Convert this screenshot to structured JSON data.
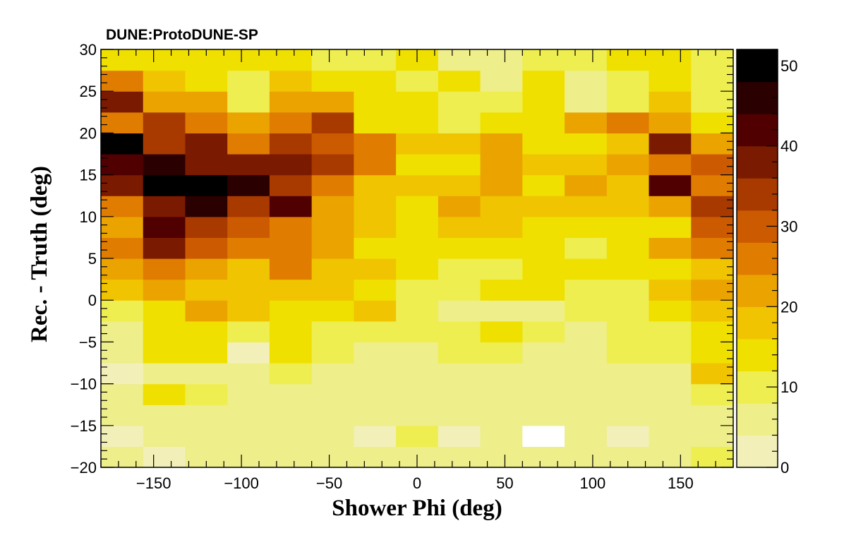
{
  "chart_data": {
    "type": "heatmap",
    "title": "DUNE:ProtoDUNE-SP",
    "xlabel": "Shower Phi (deg)",
    "ylabel": "Rec. - Truth (deg)",
    "xlim": [
      -180,
      180
    ],
    "ylim": [
      -20,
      30
    ],
    "zlim": [
      0,
      52
    ],
    "x_bin_edges": [
      -180,
      -156,
      -132,
      -108,
      -84,
      -60,
      -36,
      -12,
      12,
      36,
      60,
      84,
      108,
      132,
      156,
      180
    ],
    "y_bin_edges": [
      -20,
      -17.5,
      -15,
      -12.5,
      -10,
      -7.5,
      -5,
      -2.5,
      0,
      2.5,
      5,
      7.5,
      10,
      12.5,
      15,
      17.5,
      20,
      22.5,
      25,
      27.5,
      30
    ],
    "x_ticks": [
      "−150",
      "−100",
      "−50",
      "0",
      "50",
      "100",
      "150"
    ],
    "x_tick_values": [
      -150,
      -100,
      -50,
      0,
      50,
      100,
      150
    ],
    "y_ticks": [
      "−20",
      "−15",
      "−10",
      "−5",
      "0",
      "5",
      "10",
      "15",
      "20",
      "25",
      "30"
    ],
    "y_tick_values": [
      -20,
      -15,
      -10,
      -5,
      0,
      5,
      10,
      15,
      20,
      25,
      30
    ],
    "colorbar_ticks": [
      "0",
      "10",
      "20",
      "30",
      "40",
      "50"
    ],
    "colorbar_tick_values": [
      0,
      10,
      20,
      30,
      40,
      50
    ],
    "palette": [
      "#f2f0b8",
      "#eeee8a",
      "#eeee50",
      "#f0e000",
      "#f0c400",
      "#eba300",
      "#e07c00",
      "#cc5a00",
      "#a83a00",
      "#7a1a00",
      "#500000",
      "#2a0000",
      "#000000"
    ],
    "z": [
      [
        5,
        3,
        6,
        6,
        6,
        5,
        5,
        4,
        4,
        4,
        5,
        6,
        6,
        7,
        9
      ],
      [
        3,
        5,
        6,
        6,
        5,
        4,
        3,
        9,
        2,
        6,
        0,
        5,
        3,
        6,
        7
      ],
      [
        4,
        6,
        5,
        7,
        6,
        4,
        6,
        5,
        6,
        5,
        6,
        5,
        5,
        6,
        7
      ],
      [
        5,
        13,
        8,
        7,
        6,
        6,
        6,
        6,
        6,
        5,
        6,
        4,
        6,
        7,
        8
      ],
      [
        3,
        7,
        7,
        5,
        8,
        7,
        5,
        5,
        6,
        5,
        6,
        6,
        7,
        6,
        16
      ],
      [
        6,
        12,
        13,
        3,
        14,
        9,
        7,
        7,
        9,
        8,
        6,
        5,
        8,
        9,
        13
      ],
      [
        6,
        14,
        12,
        10,
        13,
        10,
        11,
        10,
        9,
        12,
        9,
        7,
        10,
        10,
        14
      ],
      [
        9,
        15,
        20,
        16,
        15,
        13,
        18,
        8,
        6,
        6,
        6,
        8,
        9,
        14,
        16
      ],
      [
        16,
        21,
        19,
        16,
        17,
        17,
        12,
        11,
        10,
        14,
        12,
        9,
        9,
        17,
        20
      ],
      [
        20,
        26,
        22,
        18,
        26,
        16,
        17,
        15,
        10,
        11,
        13,
        14,
        13,
        14,
        18
      ],
      [
        24,
        36,
        30,
        24,
        25,
        23,
        15,
        12,
        15,
        15,
        14,
        11,
        13,
        20,
        27
      ],
      [
        20,
        42,
        33,
        30,
        25,
        22,
        19,
        14,
        16,
        16,
        12,
        14,
        15,
        15,
        30
      ],
      [
        26,
        38,
        44,
        34,
        40,
        21,
        18,
        13,
        20,
        17,
        18,
        16,
        18,
        21,
        32
      ],
      [
        38,
        50,
        48,
        47,
        34,
        24,
        18,
        16,
        17,
        20,
        15,
        20,
        18,
        40,
        26
      ],
      [
        42,
        46,
        36,
        38,
        36,
        32,
        26,
        13,
        12,
        20,
        16,
        16,
        22,
        26,
        31
      ],
      [
        48,
        34,
        38,
        26,
        34,
        30,
        26,
        16,
        16,
        20,
        12,
        14,
        18,
        38,
        22
      ],
      [
        27,
        35,
        24,
        22,
        26,
        34,
        14,
        13,
        10,
        14,
        15,
        21,
        25,
        22,
        15
      ],
      [
        38,
        22,
        20,
        11,
        20,
        21,
        13,
        12,
        10,
        9,
        12,
        6,
        11,
        16,
        10
      ],
      [
        24,
        17,
        15,
        11,
        16,
        12,
        14,
        10,
        12,
        7,
        12,
        7,
        10,
        13,
        11
      ],
      [
        14,
        13,
        13,
        14,
        13,
        10,
        11,
        13,
        7,
        5,
        11,
        8,
        13,
        12,
        8
      ]
    ]
  }
}
